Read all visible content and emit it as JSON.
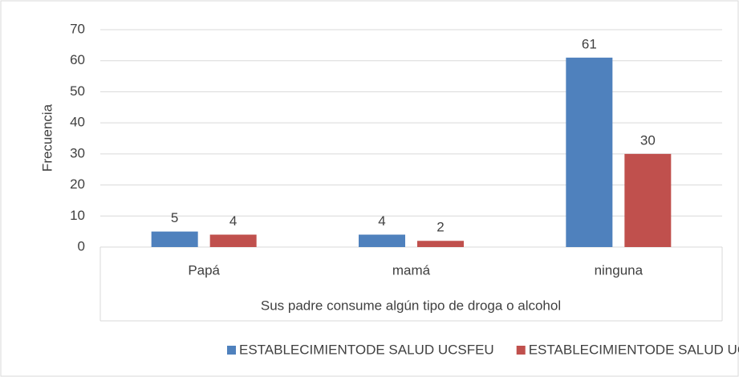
{
  "chart_data": {
    "type": "bar",
    "x_label": "Sus padre consume algún tipo de droga o alcohol",
    "y_label": "Frecuencia",
    "categories": [
      "Papá",
      "mamá",
      "ninguna"
    ],
    "series": [
      {
        "name": "ESTABLECIMIENTODE SALUD UCSFEU",
        "color": "#4f81bd",
        "values": [
          5,
          4,
          61
        ]
      },
      {
        "name": "ESTABLECIMIENTODE SALUD UCSFS",
        "color": "#c0504d",
        "values": [
          4,
          2,
          30
        ]
      }
    ],
    "ylim": [
      0,
      70
    ],
    "yticks": [
      0,
      10,
      20,
      30,
      40,
      50,
      60,
      70
    ],
    "grid": true,
    "legend": "bottom"
  }
}
